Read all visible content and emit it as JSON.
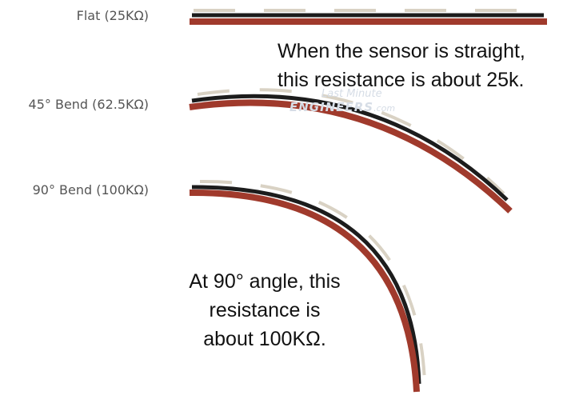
{
  "labels": {
    "flat": "Flat (25KΩ)",
    "bend45": "45° Bend (62.5KΩ)",
    "bend90": "90° Bend (100KΩ)"
  },
  "notes": {
    "straight": [
      "When the sensor is straight,",
      "this resistance is about 25k."
    ],
    "bend90": [
      "At 90° angle, this",
      "resistance is",
      "about 100KΩ."
    ]
  },
  "watermark": {
    "line1": "Last Minute",
    "line2": "ENGINEERS",
    "suffix": ".com"
  },
  "colors": {
    "substrate": "#a03a2c",
    "ink": "#1c1c1c",
    "segments": "#d9d2c4",
    "label_text": "#555555",
    "note_text": "#111111"
  }
}
